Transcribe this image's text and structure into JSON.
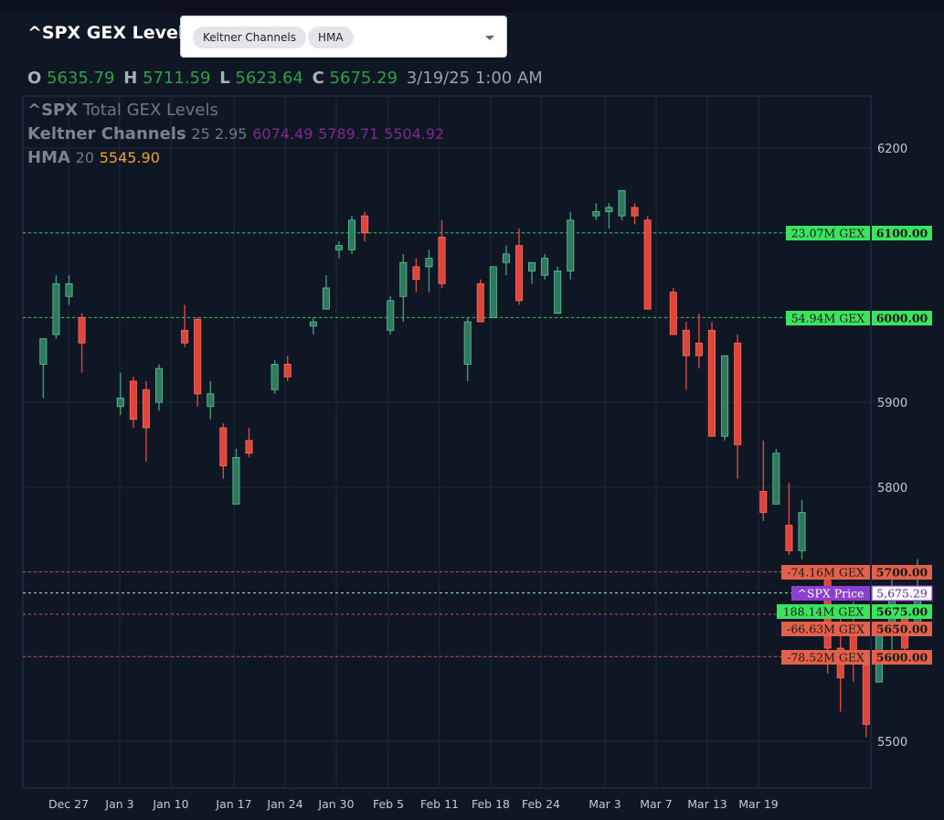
{
  "header": {
    "title": "^SPX GEX Levels",
    "indicators": [
      "Keltner Channels",
      "HMA"
    ]
  },
  "ohlc": {
    "o_label": "O",
    "o": "5635.79",
    "h_label": "H",
    "h": "5711.59",
    "l_label": "L",
    "l": "5623.64",
    "c_label": "C",
    "c": "5675.29",
    "datetime": "3/19/25 1:00 AM"
  },
  "legend": {
    "series_name": "^SPX",
    "series_desc": "Total GEX Levels",
    "keltner_name": "Keltner Channels",
    "keltner_params": "25 2.95",
    "keltner_upper": "6074.49",
    "keltner_mid": "5789.71",
    "keltner_lower": "5504.92",
    "hma_name": "HMA",
    "hma_param": "20",
    "hma_value": "5545.90"
  },
  "colors": {
    "background": "#0f1725",
    "up": "#3f9a78",
    "down": "#e0453c",
    "positive_level": "#3ce35e",
    "negative_level": "#e3604a",
    "price_label": "#8a3fd1"
  },
  "chart_data": {
    "type": "candlestick",
    "x_labels": [
      "Dec 27",
      "Jan 3",
      "Jan 10",
      "Jan 17",
      "Jan 24",
      "Jan 30",
      "Feb 5",
      "Feb 11",
      "Feb 18",
      "Feb 24",
      "Mar 3",
      "Mar 7",
      "Mar 13",
      "Mar 19"
    ],
    "y_ticks": [
      5500,
      5600,
      5700,
      5800,
      5900,
      6000,
      6100,
      6200
    ],
    "ylim": [
      5465,
      6258
    ],
    "grid": true,
    "candles": [
      {
        "x": 1,
        "o": 5945,
        "h": 5975,
        "l": 5905,
        "c": 5975
      },
      {
        "x": 2,
        "o": 5980,
        "h": 6050,
        "l": 5975,
        "c": 6040
      },
      {
        "x": 3,
        "o": 6025,
        "h": 6050,
        "l": 6015,
        "c": 6040
      },
      {
        "x": 4,
        "o": 6000,
        "h": 6005,
        "l": 5935,
        "c": 5970
      },
      {
        "x": 7,
        "o": 5895,
        "h": 5935,
        "l": 5885,
        "c": 5905
      },
      {
        "x": 8,
        "o": 5925,
        "h": 5930,
        "l": 5870,
        "c": 5880
      },
      {
        "x": 9,
        "o": 5915,
        "h": 5925,
        "l": 5830,
        "c": 5870
      },
      {
        "x": 10,
        "o": 5900,
        "h": 5945,
        "l": 5890,
        "c": 5940
      },
      {
        "x": 12,
        "o": 5985,
        "h": 6015,
        "l": 5965,
        "c": 5970
      },
      {
        "x": 13,
        "o": 5998,
        "h": 6000,
        "l": 5895,
        "c": 5910
      },
      {
        "x": 14,
        "o": 5895,
        "h": 5925,
        "l": 5880,
        "c": 5910
      },
      {
        "x": 15,
        "o": 5870,
        "h": 5875,
        "l": 5810,
        "c": 5825
      },
      {
        "x": 16,
        "o": 5780,
        "h": 5845,
        "l": 5780,
        "c": 5835
      },
      {
        "x": 17,
        "o": 5855,
        "h": 5870,
        "l": 5835,
        "c": 5840
      },
      {
        "x": 19,
        "o": 5915,
        "h": 5950,
        "l": 5910,
        "c": 5945
      },
      {
        "x": 20,
        "o": 5945,
        "h": 5955,
        "l": 5925,
        "c": 5930
      },
      {
        "x": 22,
        "o": 5990,
        "h": 6000,
        "l": 5980,
        "c": 5995
      },
      {
        "x": 23,
        "o": 6010,
        "h": 6050,
        "l": 6010,
        "c": 6035
      },
      {
        "x": 24,
        "o": 6080,
        "h": 6090,
        "l": 6070,
        "c": 6085
      },
      {
        "x": 25,
        "o": 6080,
        "h": 6120,
        "l": 6075,
        "c": 6115
      },
      {
        "x": 26,
        "o": 6120,
        "h": 6125,
        "l": 6090,
        "c": 6100
      },
      {
        "x": 28,
        "o": 5985,
        "h": 6025,
        "l": 5980,
        "c": 6020
      },
      {
        "x": 29,
        "o": 6025,
        "h": 6075,
        "l": 5995,
        "c": 6065
      },
      {
        "x": 30,
        "o": 6060,
        "h": 6070,
        "l": 6030,
        "c": 6045
      },
      {
        "x": 31,
        "o": 6060,
        "h": 6080,
        "l": 6030,
        "c": 6070
      },
      {
        "x": 32,
        "o": 6095,
        "h": 6115,
        "l": 6035,
        "c": 6040
      },
      {
        "x": 34,
        "o": 5945,
        "h": 6000,
        "l": 5925,
        "c": 5995
      },
      {
        "x": 35,
        "o": 6040,
        "h": 6045,
        "l": 5995,
        "c": 5995
      },
      {
        "x": 36,
        "o": 6000,
        "h": 6060,
        "l": 6000,
        "c": 6060
      },
      {
        "x": 37,
        "o": 6065,
        "h": 6085,
        "l": 6050,
        "c": 6075
      },
      {
        "x": 38,
        "o": 6085,
        "h": 6105,
        "l": 6015,
        "c": 6020
      },
      {
        "x": 39,
        "o": 6055,
        "h": 6065,
        "l": 6040,
        "c": 6065
      },
      {
        "x": 40,
        "o": 6050,
        "h": 6075,
        "l": 6045,
        "c": 6070
      },
      {
        "x": 41,
        "o": 6005,
        "h": 6060,
        "l": 6005,
        "c": 6055
      },
      {
        "x": 42,
        "o": 6055,
        "h": 6125,
        "l": 6045,
        "c": 6115
      },
      {
        "x": 44,
        "o": 6120,
        "h": 6135,
        "l": 6115,
        "c": 6125
      },
      {
        "x": 45,
        "o": 6125,
        "h": 6135,
        "l": 6105,
        "c": 6130
      },
      {
        "x": 46,
        "o": 6120,
        "h": 6150,
        "l": 6115,
        "c": 6150
      },
      {
        "x": 47,
        "o": 6130,
        "h": 6135,
        "l": 6110,
        "c": 6120
      },
      {
        "x": 48,
        "o": 6115,
        "h": 6120,
        "l": 6010,
        "c": 6010
      },
      {
        "x": 50,
        "o": 6030,
        "h": 6035,
        "l": 5980,
        "c": 5980
      },
      {
        "x": 51,
        "o": 5985,
        "h": 5995,
        "l": 5915,
        "c": 5955
      },
      {
        "x": 52,
        "o": 5970,
        "h": 6005,
        "l": 5940,
        "c": 5955
      },
      {
        "x": 53,
        "o": 5985,
        "h": 5995,
        "l": 5860,
        "c": 5860
      },
      {
        "x": 54,
        "o": 5860,
        "h": 5955,
        "l": 5855,
        "c": 5955
      },
      {
        "x": 55,
        "o": 5970,
        "h": 5980,
        "l": 5810,
        "c": 5850
      },
      {
        "x": 57,
        "o": 5795,
        "h": 5855,
        "l": 5760,
        "c": 5770
      },
      {
        "x": 58,
        "o": 5780,
        "h": 5845,
        "l": 5780,
        "c": 5840
      },
      {
        "x": 59,
        "o": 5755,
        "h": 5805,
        "l": 5720,
        "c": 5725
      },
      {
        "x": 60,
        "o": 5725,
        "h": 5785,
        "l": 5715,
        "c": 5770
      },
      {
        "x": 62,
        "o": 5690,
        "h": 5700,
        "l": 5580,
        "c": 5610
      },
      {
        "x": 63,
        "o": 5610,
        "h": 5645,
        "l": 5535,
        "c": 5575
      },
      {
        "x": 64,
        "o": 5630,
        "h": 5665,
        "l": 5570,
        "c": 5595
      },
      {
        "x": 65,
        "o": 5590,
        "h": 5595,
        "l": 5505,
        "c": 5520
      },
      {
        "x": 66,
        "o": 5570,
        "h": 5640,
        "l": 5570,
        "c": 5635
      },
      {
        "x": 67,
        "o": 5630,
        "h": 5695,
        "l": 5600,
        "c": 5675
      },
      {
        "x": 68,
        "o": 5645,
        "h": 5655,
        "l": 5600,
        "c": 5610
      },
      {
        "x": 69,
        "o": 5635,
        "h": 5715,
        "l": 5625,
        "c": 5675
      }
    ],
    "gex_levels": [
      {
        "price": 6100,
        "gex": "23.07M GEX",
        "price_label": "6100.00",
        "sign": "positive"
      },
      {
        "price": 6000,
        "gex": "54.94M GEX",
        "price_label": "6000.00",
        "sign": "positive"
      },
      {
        "price": 5700,
        "gex": "-74.16M GEX",
        "price_label": "5700.00",
        "sign": "negative"
      },
      {
        "price": 5675,
        "gex": "188.14M GEX",
        "price_label": "5675.00",
        "sign": "positive"
      },
      {
        "price": 5650,
        "gex": "-66.63M GEX",
        "price_label": "5650.00",
        "sign": "negative"
      },
      {
        "price": 5600,
        "gex": "-78.52M GEX",
        "price_label": "5600.00",
        "sign": "negative"
      }
    ],
    "current_price": {
      "price": 5675.29,
      "label": "^SPX Price",
      "value_label": "5,675.29"
    }
  }
}
